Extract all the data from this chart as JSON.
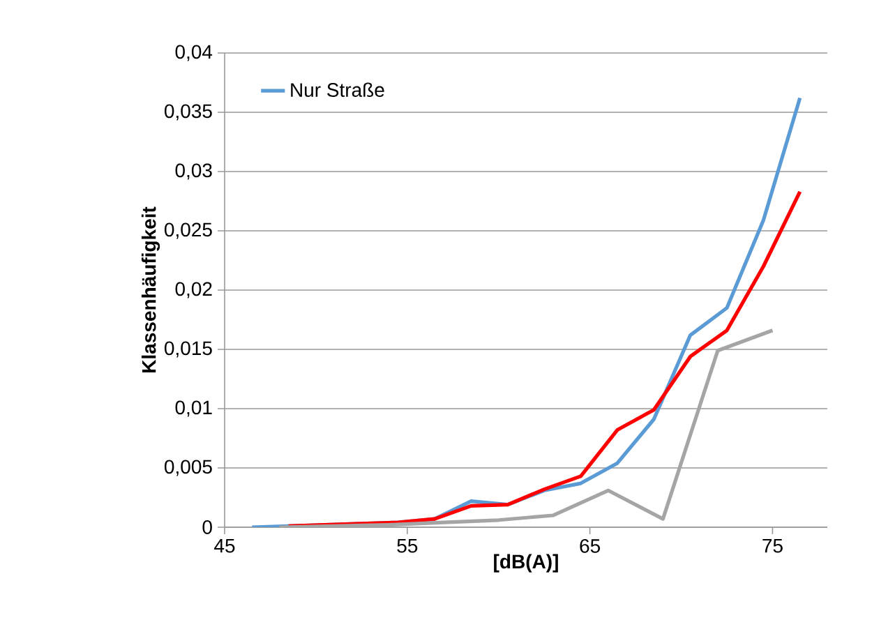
{
  "chart_data": {
    "type": "line",
    "xlabel": "[dB(A)]",
    "ylabel": "Klassenhäufigkeit",
    "xlim": [
      45,
      78
    ],
    "xticks": [
      45,
      55,
      65,
      75
    ],
    "ylim": [
      0,
      0.04
    ],
    "yticks": [
      0,
      {
        "value": 0.005,
        "label": "0,005"
      },
      {
        "value": 0.01,
        "label": "0,01"
      },
      {
        "value": 0.015,
        "label": "0,015"
      },
      {
        "value": 0.02,
        "label": "0,02"
      },
      {
        "value": 0.025,
        "label": "0,025"
      },
      {
        "value": 0.03,
        "label": "0,03"
      },
      {
        "value": 0.035,
        "label": "0,035"
      },
      {
        "value": 0.04,
        "label": "0,04"
      }
    ],
    "grid": "y",
    "legend": "top left",
    "line_style": "solid",
    "series": [
      {
        "name": "Nur Straße",
        "color": "#5b9bd5",
        "x": [
          46.5,
          48.5,
          50.5,
          52.5,
          54.5,
          56.5,
          58.5,
          60.5,
          62.5,
          64.5,
          66.5,
          68.5,
          70.5,
          72.5,
          74.5,
          76.5
        ],
        "values": [
          0,
          0.0001,
          0.0002,
          0.0003,
          0.0004,
          0.0007,
          0.0022,
          0.0019,
          0.0031,
          0.0037,
          0.0054,
          0.0091,
          0.0162,
          0.0185,
          0.0259,
          0.0362
        ]
      },
      {
        "color": "#ff0000",
        "x": [
          48.5,
          50.5,
          52.5,
          54.5,
          56.5,
          58.5,
          60.5,
          62.5,
          64.5,
          66.5,
          68.5,
          70.5,
          72.5,
          74.5,
          76.5
        ],
        "values": [
          0.0001,
          0.0002,
          0.0003,
          0.0004,
          0.0007,
          0.0018,
          0.0019,
          0.0032,
          0.0043,
          0.0082,
          0.0099,
          0.0144,
          0.0166,
          0.022,
          0.0283
        ]
      },
      {
        "color": "#a5a5a5",
        "x": [
          48,
          51,
          54,
          57,
          60,
          63,
          66,
          69,
          72,
          75
        ],
        "values": [
          0,
          0.0001,
          0.0002,
          0.0004,
          0.0006,
          0.001,
          0.0031,
          0.0007,
          0.0149,
          0.0166
        ]
      }
    ]
  }
}
